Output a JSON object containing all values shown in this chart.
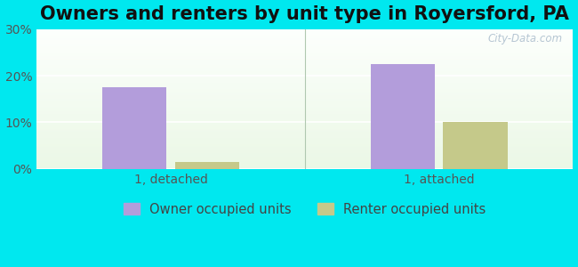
{
  "title": "Owners and renters by unit type in Royersford, PA",
  "groups": [
    "1, detached",
    "1, attached"
  ],
  "series": [
    "Owner occupied units",
    "Renter occupied units"
  ],
  "values": [
    [
      17.5,
      1.5
    ],
    [
      22.5,
      10.0
    ]
  ],
  "bar_colors": [
    "#b39ddb",
    "#c5c98a"
  ],
  "bar_width": 0.12,
  "ylim": [
    0,
    30
  ],
  "yticks": [
    0,
    10,
    20,
    30
  ],
  "ytick_labels": [
    "0%",
    "10%",
    "20%",
    "30%"
  ],
  "title_fontsize": 15,
  "tick_fontsize": 10,
  "legend_fontsize": 10.5,
  "outer_bg": "#00e8ef",
  "watermark": "City-Data.com",
  "group_positions": [
    0.25,
    0.75
  ]
}
